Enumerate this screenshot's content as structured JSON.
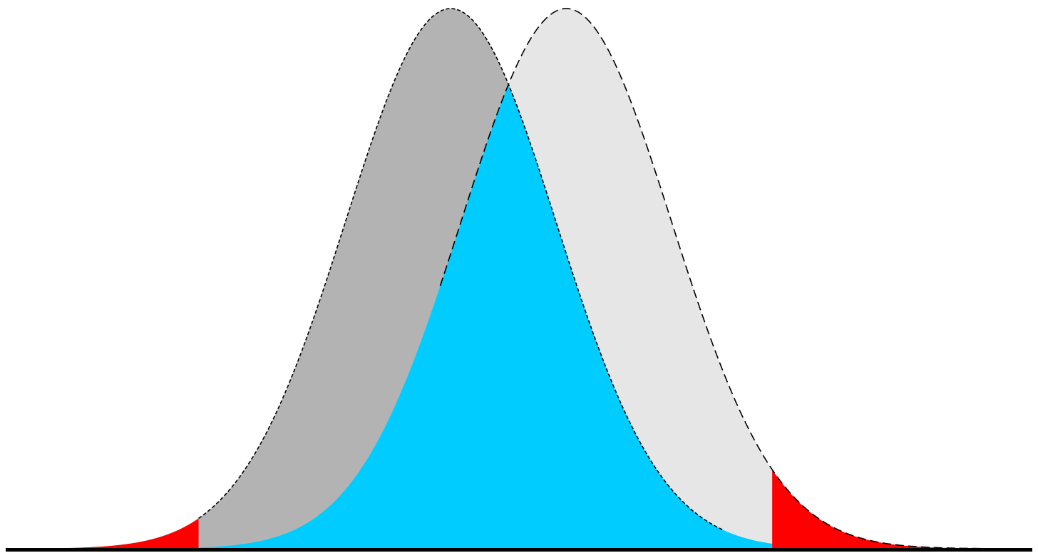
{
  "chart_data": {
    "type": "area",
    "title": "",
    "xlabel": "",
    "ylabel": "",
    "xlim": [
      -4.1,
      5.4
    ],
    "ylim": [
      0,
      0.4
    ],
    "grid": false,
    "legend": "none",
    "series": [
      {
        "kind": "normal-density",
        "mean": 0,
        "sd": 1,
        "fill": "#b3b3b3",
        "line": "dashed"
      },
      {
        "kind": "normal-density",
        "mean": 1.1,
        "sd": 1,
        "fill": "#e6e6e6",
        "line": "dashed"
      }
    ],
    "regions": [
      {
        "kind": "overlap",
        "from": -2.4,
        "to": 3.06,
        "fill": "#00ccff"
      },
      {
        "kind": "tail",
        "side": "left",
        "from": -4.1,
        "to": -2.4,
        "fill": "#ff0000"
      },
      {
        "kind": "tail",
        "side": "right",
        "from": 3.06,
        "to": 5.4,
        "fill": "#ff0000"
      }
    ]
  },
  "colors": {
    "background": "#ffffff",
    "axis": "#000000",
    "outline": "#000000"
  }
}
